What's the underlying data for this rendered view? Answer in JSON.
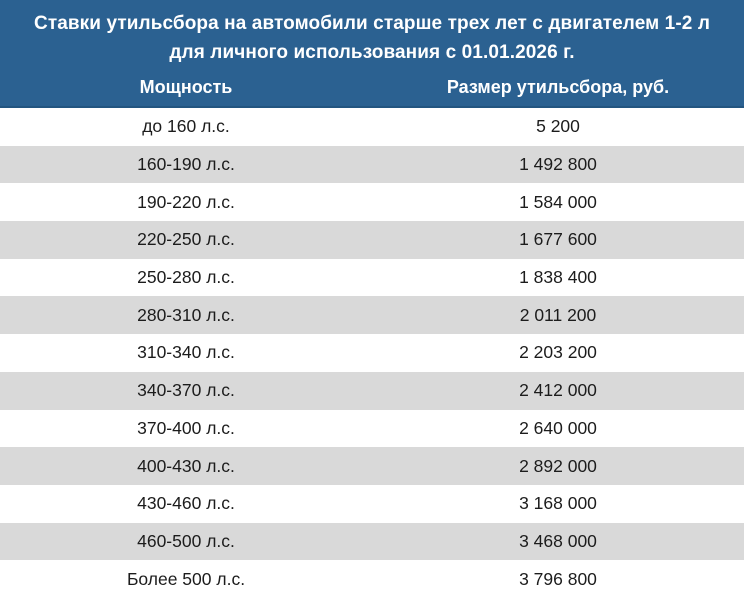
{
  "banner": {
    "title_line1": "Ставки утильсбора на автомобили старше трех лет с двигателем 1-2 л",
    "title_line2": "для личного использования с 01.01.2026 г."
  },
  "table": {
    "columns": [
      "Мощность",
      "Размер утильсбора, руб."
    ],
    "rows": [
      {
        "power": "до 160 л.с.",
        "fee": "5 200"
      },
      {
        "power": "160-190 л.с.",
        "fee": "1 492 800"
      },
      {
        "power": "190-220 л.с.",
        "fee": "1 584 000"
      },
      {
        "power": "220-250 л.с.",
        "fee": "1 677 600"
      },
      {
        "power": "250-280 л.с.",
        "fee": "1 838 400"
      },
      {
        "power": "280-310 л.с.",
        "fee": "2 011 200"
      },
      {
        "power": "310-340 л.с.",
        "fee": "2 203 200"
      },
      {
        "power": "340-370 л.с.",
        "fee": "2 412 000"
      },
      {
        "power": "370-400 л.с.",
        "fee": "2 640 000"
      },
      {
        "power": "400-430 л.с.",
        "fee": "2 892 000"
      },
      {
        "power": "430-460 л.с.",
        "fee": "3 168 000"
      },
      {
        "power": "460-500 л.с.",
        "fee": "3 468 000"
      },
      {
        "power": "Более 500 л.с.",
        "fee": "3 796 800"
      }
    ]
  },
  "chart_data": {
    "type": "table",
    "title": "Ставки утильсбора на автомобили старше трех лет с двигателем 1-2 л для личного использования с 01.01.2026 г.",
    "columns": [
      "Мощность",
      "Размер утильсбора, руб."
    ],
    "categories": [
      "до 160 л.с.",
      "160-190 л.с.",
      "190-220 л.с.",
      "220-250 л.с.",
      "250-280 л.с.",
      "280-310 л.с.",
      "310-340 л.с.",
      "340-370 л.с.",
      "370-400 л.с.",
      "400-430 л.с.",
      "430-460 л.с.",
      "460-500 л.с.",
      "Более 500 л.с."
    ],
    "values": [
      5200,
      1492800,
      1584000,
      1677600,
      1838400,
      2011200,
      2203200,
      2412000,
      2640000,
      2892000,
      3168000,
      3468000,
      3796800
    ]
  },
  "colors": {
    "banner_blue": "#2b6191",
    "banner_edge": "#235580",
    "row_gray": "#d9d9d9",
    "row_white": "#ffffff",
    "text_dark": "#1c1c1c",
    "text_white": "#ffffff"
  }
}
